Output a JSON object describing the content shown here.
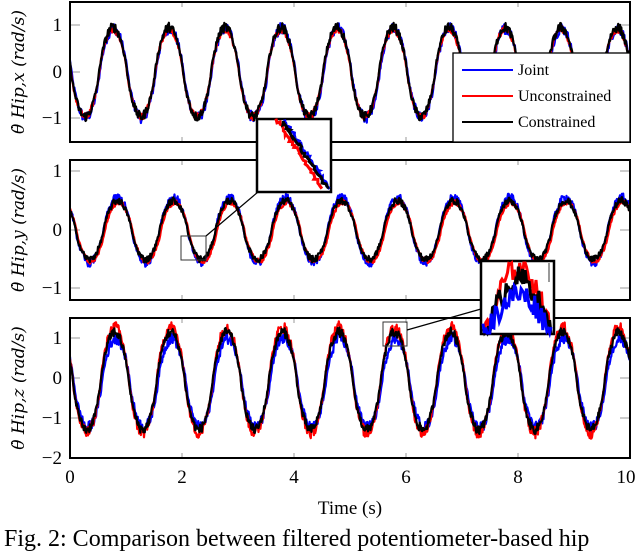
{
  "figure": {
    "caption": "Fig. 2: Comparison between filtered potentiometer-based hip",
    "xlabel": "Time (s)",
    "legend": [
      {
        "label": "Joint",
        "color": "#0000ff"
      },
      {
        "label": "Unconstrained",
        "color": "#ff0000"
      },
      {
        "label": "Constrained",
        "color": "#000000"
      }
    ],
    "x_ticks": [
      "0",
      "2",
      "4",
      "6",
      "8",
      "10"
    ]
  },
  "chart_data": [
    {
      "type": "line",
      "title": "",
      "xlabel": "",
      "ylabel": "θ̇ Hip,x (rad/s)",
      "xlim": [
        0,
        10
      ],
      "ylim": [
        -1.5,
        1.5
      ],
      "y_ticks": [
        "1",
        "0",
        "−1"
      ],
      "grid": false,
      "legend_position": "upper right (inside)",
      "period_s": 1.0,
      "series": [
        {
          "name": "Joint",
          "color": "#0000ff",
          "amplitude": 0.95,
          "offset": -0.02,
          "phase_peak_s": 0.78,
          "noise": 0.08
        },
        {
          "name": "Unconstrained",
          "color": "#ff0000",
          "amplitude": 0.93,
          "offset": -0.02,
          "phase_peak_s": 0.77,
          "noise": 0.05
        },
        {
          "name": "Constrained",
          "color": "#000000",
          "amplitude": 0.95,
          "offset": 0.0,
          "phase_peak_s": 0.77,
          "noise": 0.07
        }
      ],
      "x": [
        0,
        0.25,
        0.5,
        0.77,
        1.0,
        1.27,
        1.5,
        1.77,
        2.0,
        2.27,
        2.5,
        2.77,
        3.0,
        3.27,
        3.5,
        3.77,
        4.0,
        4.27,
        4.5,
        4.77,
        5.0,
        5.27,
        5.5,
        5.77,
        6.0,
        6.27,
        6.5,
        6.77,
        7.0,
        7.27,
        7.5,
        7.77,
        8.0,
        8.27,
        8.5,
        8.77,
        9.0,
        9.27,
        9.5,
        9.77,
        10.0
      ],
      "values_constrained": [
        0.0,
        -0.9,
        0.1,
        1.0,
        0.0,
        -0.9,
        0.1,
        1.0,
        0.0,
        -0.9,
        0.1,
        1.0,
        0.0,
        -0.9,
        0.1,
        1.0,
        0.0,
        -0.9,
        0.1,
        1.0,
        0.0,
        -0.9,
        0.1,
        1.0,
        0.0,
        -0.9,
        0.1,
        1.0,
        0.0,
        -0.9,
        0.1,
        1.0,
        0.0,
        -0.9,
        0.1,
        1.0,
        0.0,
        -0.9,
        0.1,
        1.0,
        0.0
      ],
      "inset": {
        "source_box": {
          "x": [
            2.0,
            2.45
          ],
          "y": [
            -0.55,
            -0.05
          ]
        },
        "panel": "middle → magnified above",
        "shows": "Unconstrained (red) slightly below Joint/Constrained on descending slope"
      }
    },
    {
      "type": "line",
      "title": "",
      "xlabel": "",
      "ylabel": "θ̇ Hip,y (rad/s)",
      "xlim": [
        0,
        10
      ],
      "ylim": [
        -1.2,
        1.2
      ],
      "y_ticks": [
        "1",
        "0",
        "−1"
      ],
      "grid": false,
      "period_s": 1.0,
      "series": [
        {
          "name": "Joint",
          "color": "#0000ff",
          "amplitude": 0.55,
          "offset": 0.0,
          "phase_peak_s": 0.85,
          "noise": 0.05
        },
        {
          "name": "Unconstrained",
          "color": "#ff0000",
          "amplitude": 0.5,
          "offset": -0.03,
          "phase_peak_s": 0.87,
          "noise": 0.03
        },
        {
          "name": "Constrained",
          "color": "#000000",
          "amplitude": 0.5,
          "offset": 0.0,
          "phase_peak_s": 0.85,
          "noise": 0.04
        }
      ],
      "x": [
        0,
        0.4,
        0.85,
        1.4,
        1.85,
        2.4,
        2.85,
        3.4,
        3.85,
        4.4,
        4.85,
        5.4,
        5.85,
        6.4,
        6.85,
        7.4,
        7.85,
        8.4,
        8.85,
        9.4,
        9.85,
        10.0
      ],
      "values_constrained": [
        0.3,
        -0.5,
        0.5,
        -0.5,
        0.5,
        -0.5,
        0.5,
        -0.5,
        0.5,
        -0.5,
        0.5,
        -0.5,
        0.5,
        -0.5,
        0.5,
        -0.5,
        0.5,
        -0.5,
        0.5,
        -0.6,
        0.5,
        0.4
      ]
    },
    {
      "type": "line",
      "title": "",
      "xlabel": "Time (s)",
      "ylabel": "θ̇ Hip,z (rad/s)",
      "xlim": [
        0,
        10
      ],
      "ylim": [
        -2,
        1.5
      ],
      "y_ticks": [
        "1",
        "0",
        "−1",
        "−2"
      ],
      "x_ticks": [
        0,
        2,
        4,
        6,
        8,
        10
      ],
      "grid": false,
      "period_s": 1.0,
      "series": [
        {
          "name": "Joint",
          "color": "#0000ff",
          "amplitude": 1.12,
          "offset": -0.12,
          "phase_peak_s": 0.82,
          "noise": 0.1
        },
        {
          "name": "Unconstrained",
          "color": "#ff0000",
          "amplitude": 1.32,
          "offset": -0.05,
          "phase_peak_s": 0.8,
          "noise": 0.1
        },
        {
          "name": "Constrained",
          "color": "#000000",
          "amplitude": 1.22,
          "offset": -0.07,
          "phase_peak_s": 0.8,
          "noise": 0.08
        }
      ],
      "x": [
        0,
        0.3,
        0.8,
        1.3,
        1.8,
        2.3,
        2.8,
        3.3,
        3.8,
        4.3,
        4.8,
        5.3,
        5.8,
        6.3,
        6.8,
        7.3,
        7.8,
        8.3,
        8.8,
        9.3,
        9.8,
        10.0
      ],
      "values_unconstrained": [
        0.7,
        -1.4,
        1.3,
        -1.4,
        1.3,
        -1.4,
        1.3,
        -1.4,
        1.3,
        -1.4,
        1.3,
        -1.4,
        1.3,
        -1.4,
        1.3,
        -1.4,
        1.3,
        -1.4,
        1.3,
        -1.4,
        1.3,
        1.0
      ],
      "values_constrained": [
        0.6,
        -1.3,
        1.1,
        -1.3,
        1.1,
        -1.3,
        1.1,
        -1.3,
        1.1,
        -1.3,
        1.1,
        -1.3,
        1.1,
        -1.3,
        1.1,
        -1.3,
        1.1,
        -1.3,
        1.1,
        -1.3,
        1.1,
        0.9
      ],
      "values_joint": [
        0.5,
        -1.2,
        1.0,
        -1.2,
        1.0,
        -1.2,
        1.0,
        -1.2,
        1.0,
        -1.2,
        1.0,
        -1.2,
        1.0,
        -1.2,
        1.0,
        -1.2,
        1.0,
        -1.2,
        1.0,
        -1.2,
        1.0,
        0.8
      ],
      "inset": {
        "source_box": {
          "x": [
            5.65,
            6.0
          ],
          "y": [
            0.8,
            1.4
          ]
        },
        "shows": "Unconstrained (red) peaks highest, Joint (blue) lowest"
      }
    }
  ]
}
